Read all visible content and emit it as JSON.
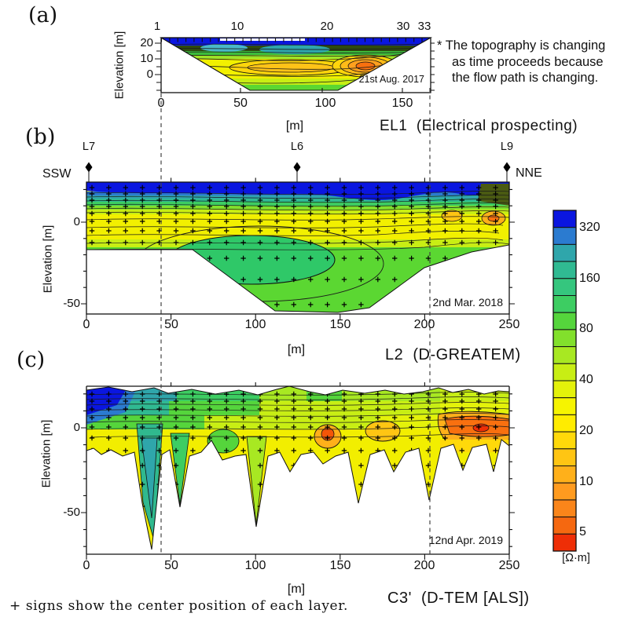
{
  "figure": {
    "panel_a_letter": "(a)",
    "panel_b_letter": "(b)",
    "panel_c_letter": "(c)",
    "footnote": "+ signs show the center position of each layer."
  },
  "note": {
    "lines": [
      "* The topography is changing",
      "as time proceeds because",
      "the flow path is changing."
    ]
  },
  "panel_a": {
    "title": "EL1  (Electrical prospecting)",
    "date": "21st Aug. 2017",
    "ylabel": "Elevation [m]",
    "xunit": "[m]",
    "top_ticks": [
      "1",
      "10",
      "20",
      "30",
      "33"
    ],
    "yticks": [
      "20",
      "10",
      "0"
    ],
    "xticks": [
      "0",
      "50",
      "100",
      "150"
    ]
  },
  "panel_b": {
    "title": "L2  (D-GREATEM)",
    "date": "2nd Mar. 2018",
    "ylabel": "Elevation [m]",
    "xunit": "[m]",
    "left_end": "SSW",
    "right_end": "NNE",
    "borehole_labels": [
      "L7",
      "L6",
      "L9"
    ],
    "yticks": [
      "0",
      "-50"
    ],
    "xticks": [
      "0",
      "50",
      "100",
      "150",
      "200",
      "250"
    ]
  },
  "panel_c": {
    "title": "C3'  (D-TEM [ALS])",
    "date": "12nd Apr. 2019",
    "ylabel": "Elevation [m]",
    "xunit": "[m]",
    "yticks": [
      "0",
      "-50"
    ],
    "xticks": [
      "0",
      "50",
      "100",
      "150",
      "200",
      "250"
    ]
  },
  "colorbar": {
    "unit": "[Ω·m]",
    "labels": [
      "320",
      "160",
      "80",
      "40",
      "20",
      "10",
      "5"
    ],
    "colors": [
      "#0A16E0",
      "#2B7BD0",
      "#2FA6AB",
      "#30BA92",
      "#35C67E",
      "#3DCD62",
      "#55D53C",
      "#82E02C",
      "#A8E822",
      "#C8EE14",
      "#E4F20A",
      "#F6F400",
      "#FFEC00",
      "#FFD90A",
      "#FFC513",
      "#FFB01A",
      "#FF9B1F",
      "#FA851A",
      "#F56810",
      "#EE2E06"
    ]
  },
  "chart_data": [
    {
      "type": "heatmap",
      "subtype": "2D resistivity contour cross-section",
      "panel": "(a)",
      "title": "EL1 (Electrical prospecting)",
      "survey_date": "21st Aug. 2017",
      "xlabel": "[m]",
      "x_ticks": [
        0,
        50,
        100,
        150
      ],
      "x_range_m": [
        0,
        168
      ],
      "electrode_numbers": [
        1,
        10,
        20,
        30,
        33
      ],
      "ylabel": "Elevation [m]",
      "y_ticks": [
        20,
        10,
        0
      ],
      "elevation_range_m": [
        -12,
        23
      ],
      "features": "Basin-shaped section: blue high-resistivity (>320 ohm·m) surface band over yellow 20-40 ohm·m body; concentric orange low-resistivity (~10 ohm·m) anomaly centered near x=125 m at ~8 m elevation; green 80 ohm·m rim along the basin floor"
    },
    {
      "type": "heatmap",
      "subtype": "2D resistivity contour cross-section",
      "panel": "(b)",
      "title": "L2 (D-GREATEM)",
      "survey_date": "2nd Mar. 2018",
      "orientation": {
        "left": "SSW",
        "right": "NNE"
      },
      "borehole_markers": [
        {
          "label": "L7",
          "x_m": 1
        },
        {
          "label": "L6",
          "x_m": 125
        },
        {
          "label": "L9",
          "x_m": 249
        }
      ],
      "xlabel": "[m]",
      "x_ticks": [
        0,
        50,
        100,
        150,
        200,
        250
      ],
      "ylabel": "Elevation [m]",
      "y_ticks": [
        0,
        -50
      ],
      "elevation_range_m": [
        -56,
        24
      ],
      "features": "Thin blue >320 ohm·m surface layer with banded blue-teal-green transition, yellow 20-40 ohm·m zone near elevation 0, broad green 80 ohm·m body at depth with teal ~160 ohm·m core between x=50-150 m; small orange 10-20 ohm·m anomalies near the NNE end; + marks show layer centers; dashed lines at x≈44 m and x≈204 m correlate panels"
    },
    {
      "type": "heatmap",
      "subtype": "2D resistivity contour cross-section",
      "panel": "(c)",
      "title": "C3' (D-TEM [ALS])",
      "survey_date": "12nd Apr. 2019",
      "xlabel": "[m]",
      "x_ticks": [
        0,
        50,
        100,
        150,
        200,
        250
      ],
      "ylabel": "Elevation [m]",
      "y_ticks": [
        0,
        -50
      ],
      "elevation_range_m": [
        -75,
        24
      ],
      "features": "Jagged sounding-by-sounding section: blue-teal high-resistivity zone at SSW top corner, deep narrow teal spike to ~-70 m near x=35 m, yellow 20-40 ohm·m body, prominent orange-red 5-10 ohm·m band near the NNE end around elevation -5 m"
    },
    {
      "type": "colorbar",
      "scale": "logarithmic",
      "tick_values": [
        320,
        160,
        80,
        40,
        20,
        10,
        5
      ],
      "unit": "[Ω·m]",
      "segments": 20,
      "top_color_meaning": "high resistivity (blue)",
      "bottom_color_meaning": "low resistivity (red)"
    }
  ]
}
